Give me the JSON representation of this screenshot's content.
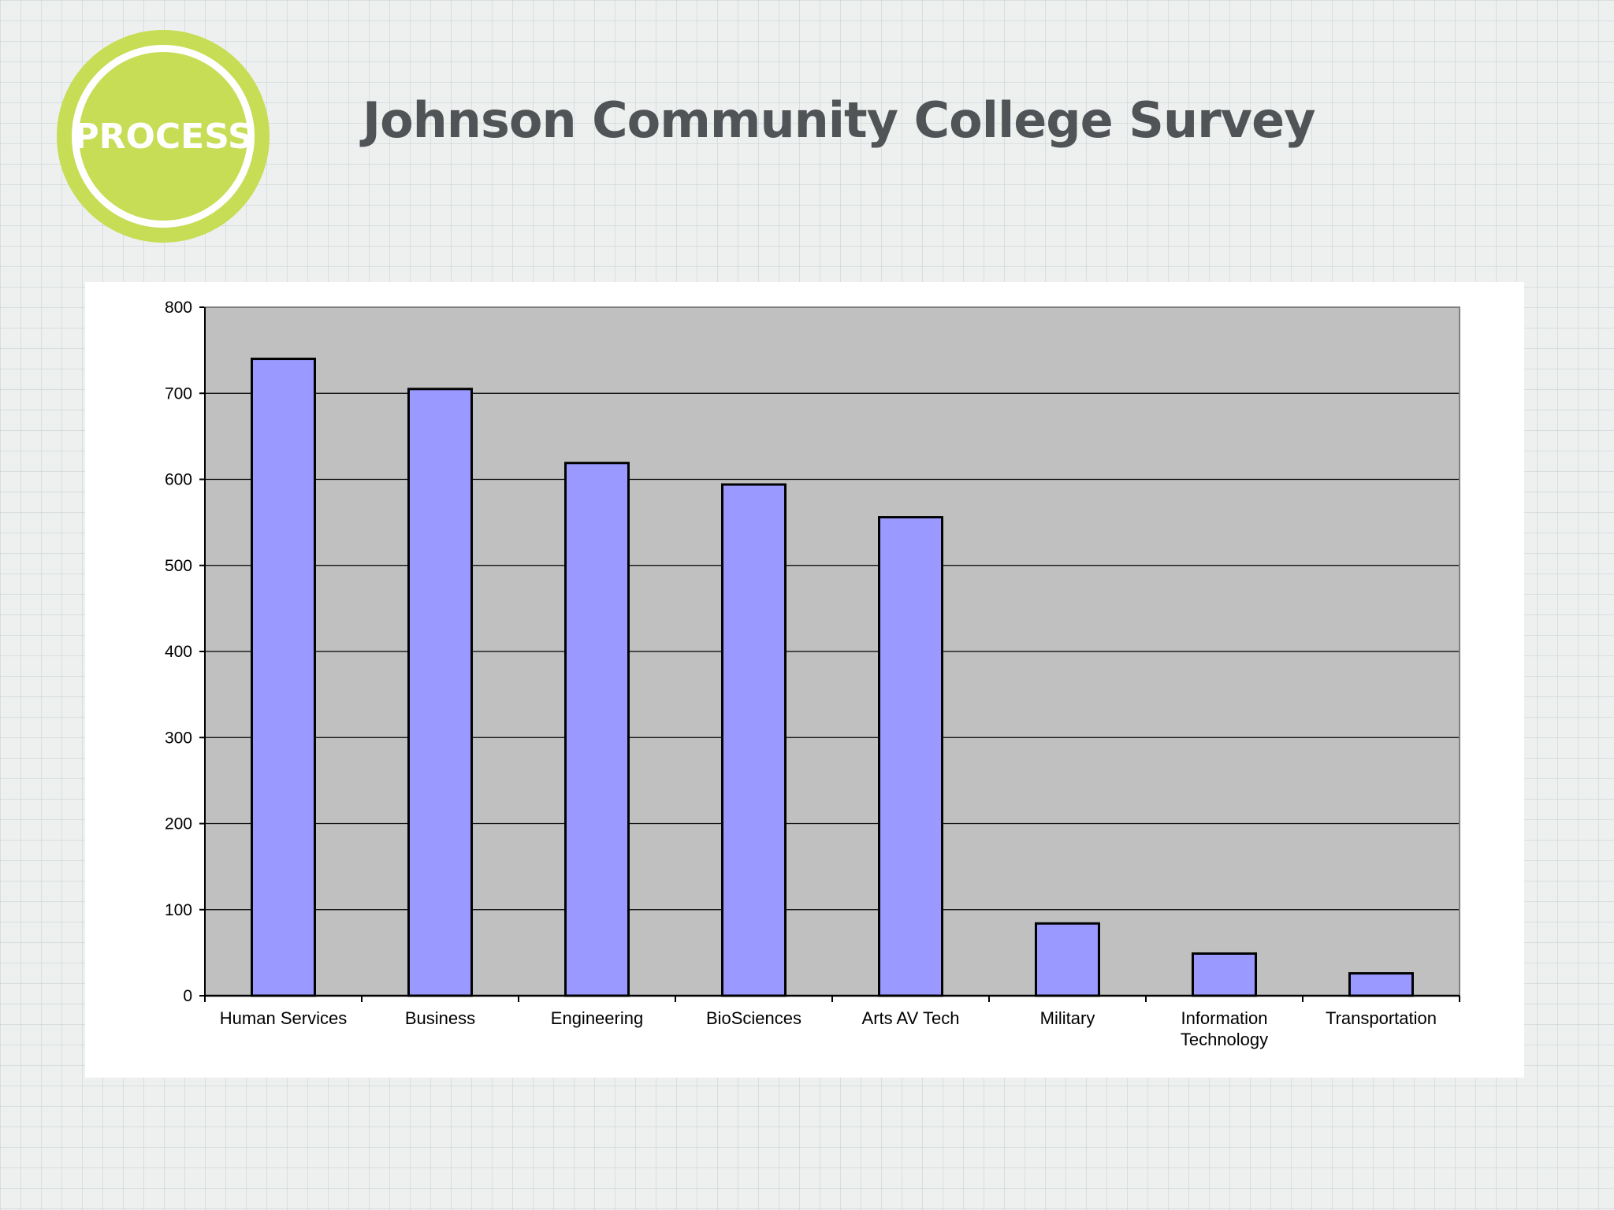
{
  "badge": {
    "label": "PROCESS",
    "color": "#c6dd55"
  },
  "page_title": "Johnson Community College Survey",
  "chart_data": {
    "type": "bar",
    "title": "",
    "xlabel": "",
    "ylabel": "",
    "categories": [
      "Human Services",
      "Business",
      "Engineering",
      "BioSciences",
      "Arts AV Tech",
      "Military",
      "Information Technology",
      "Transportation"
    ],
    "category_lines": [
      [
        "Human Services"
      ],
      [
        "Business"
      ],
      [
        "Engineering"
      ],
      [
        "BioSciences"
      ],
      [
        "Arts AV Tech"
      ],
      [
        "Military"
      ],
      [
        "Information",
        "Technology"
      ],
      [
        "Transportation"
      ]
    ],
    "values": [
      740,
      705,
      619,
      594,
      556,
      84,
      49,
      26
    ],
    "ylim": [
      0,
      800
    ],
    "yticks": [
      0,
      100,
      200,
      300,
      400,
      500,
      600,
      700,
      800
    ],
    "grid": true,
    "legend": "none",
    "colors": {
      "bar": "#9999ff",
      "plot_background": "#c0c0c0",
      "gridline": "#000000"
    }
  }
}
